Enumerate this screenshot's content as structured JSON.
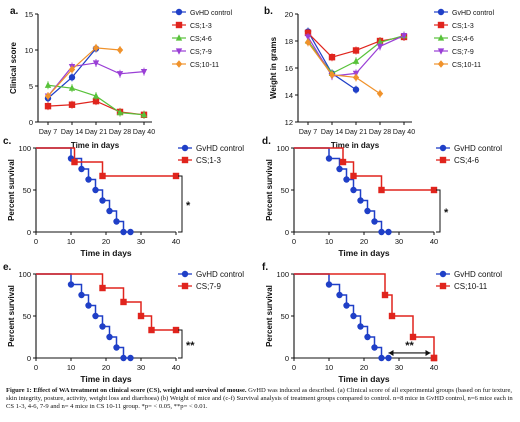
{
  "colors": {
    "gvhd": "#1f3fc7",
    "cs13": "#e0241d",
    "cs46": "#58c23a",
    "cs79": "#9a3fd6",
    "cs1011": "#f0922b",
    "axis": "#111111"
  },
  "chart_data": [
    {
      "panel": "a.",
      "type": "line",
      "xlabel": "Time in days",
      "ylabel": "Clinical score",
      "categories": [
        "Day 7",
        "Day 14",
        "Day 21",
        "Day 28",
        "Day 40"
      ],
      "yticks": [
        "0",
        "5",
        "10",
        "15"
      ],
      "ylim": [
        0,
        15
      ],
      "legend_position": "right",
      "series": [
        {
          "name": "GvHD control",
          "color_key": "gvhd",
          "marker": "circle",
          "values": [
            3.3,
            6.2,
            10.2,
            null,
            null
          ]
        },
        {
          "name": "CS;1-3",
          "color_key": "cs13",
          "marker": "square",
          "values": [
            2.2,
            2.4,
            2.9,
            1.4,
            1.0
          ]
        },
        {
          "name": "CS;4-6",
          "color_key": "cs46",
          "marker": "triangle",
          "values": [
            5.1,
            4.7,
            3.6,
            1.3,
            1.0
          ]
        },
        {
          "name": "CS;7-9",
          "color_key": "cs79",
          "marker": "triangle-down",
          "values": [
            3.6,
            7.7,
            8.2,
            6.7,
            7.0
          ]
        },
        {
          "name": "CS;10-11",
          "color_key": "cs1011",
          "marker": "diamond",
          "values": [
            3.6,
            7.3,
            10.3,
            10.0,
            null
          ]
        }
      ]
    },
    {
      "panel": "b.",
      "type": "line",
      "xlabel": "Time in days",
      "ylabel": "Weight in grams",
      "categories": [
        "Day 7",
        "Day 14",
        "Day 21",
        "Day 28",
        "Day 40"
      ],
      "yticks": [
        "12",
        "14",
        "16",
        "18",
        "20"
      ],
      "ylim": [
        12,
        20
      ],
      "legend_position": "right",
      "series": [
        {
          "name": "GvHD control",
          "color_key": "gvhd",
          "marker": "circle",
          "values": [
            18.7,
            15.6,
            14.4,
            null,
            null
          ]
        },
        {
          "name": "CS;1-3",
          "color_key": "cs13",
          "marker": "square",
          "values": [
            18.6,
            16.8,
            17.3,
            18.0,
            18.3
          ]
        },
        {
          "name": "CS;4-6",
          "color_key": "cs46",
          "marker": "triangle",
          "values": [
            18.0,
            15.6,
            16.5,
            17.9,
            18.4
          ]
        },
        {
          "name": "CS;7-9",
          "color_key": "cs79",
          "marker": "triangle-down",
          "values": [
            18.3,
            15.4,
            15.6,
            17.6,
            18.4
          ]
        },
        {
          "name": "CS;10-11",
          "color_key": "cs1011",
          "marker": "diamond",
          "values": [
            17.9,
            15.5,
            15.3,
            14.1,
            null
          ]
        }
      ]
    },
    {
      "panel": "c.",
      "type": "line",
      "step": true,
      "xlabel": "Time in days",
      "ylabel": "Percent survival",
      "xticks": [
        "0",
        "10",
        "20",
        "30",
        "40"
      ],
      "yticks": [
        "0",
        "50",
        "100"
      ],
      "xlim": [
        0,
        40
      ],
      "ylim": [
        0,
        100
      ],
      "significance": "*",
      "series": [
        {
          "name": "GvHD control",
          "color_key": "gvhd",
          "points": [
            [
              0,
              100
            ],
            [
              10,
              100
            ],
            [
              10,
              87.5
            ],
            [
              13,
              87.5
            ],
            [
              13,
              75
            ],
            [
              15,
              75
            ],
            [
              15,
              62.5
            ],
            [
              17,
              62.5
            ],
            [
              17,
              50
            ],
            [
              19,
              50
            ],
            [
              19,
              37.5
            ],
            [
              21,
              37.5
            ],
            [
              21,
              25
            ],
            [
              23,
              25
            ],
            [
              23,
              12.5
            ],
            [
              25,
              12.5
            ],
            [
              25,
              0
            ],
            [
              27,
              0
            ]
          ]
        },
        {
          "name": "CS;1-3",
          "color_key": "cs13",
          "points": [
            [
              0,
              100
            ],
            [
              11,
              100
            ],
            [
              11,
              83.3
            ],
            [
              19,
              83.3
            ],
            [
              19,
              66.7
            ],
            [
              40,
              66.7
            ]
          ]
        }
      ]
    },
    {
      "panel": "d.",
      "type": "line",
      "step": true,
      "xlabel": "Time in days",
      "ylabel": "Percent survival",
      "xticks": [
        "0",
        "10",
        "20",
        "30",
        "40"
      ],
      "yticks": [
        "0",
        "50",
        "100"
      ],
      "xlim": [
        0,
        40
      ],
      "ylim": [
        0,
        100
      ],
      "significance": "*",
      "series": [
        {
          "name": "GvHD control",
          "color_key": "gvhd",
          "points": [
            [
              0,
              100
            ],
            [
              10,
              100
            ],
            [
              10,
              87.5
            ],
            [
              13,
              87.5
            ],
            [
              13,
              75
            ],
            [
              15,
              75
            ],
            [
              15,
              62.5
            ],
            [
              17,
              62.5
            ],
            [
              17,
              50
            ],
            [
              19,
              50
            ],
            [
              19,
              37.5
            ],
            [
              21,
              37.5
            ],
            [
              21,
              25
            ],
            [
              23,
              25
            ],
            [
              23,
              12.5
            ],
            [
              25,
              12.5
            ],
            [
              25,
              0
            ],
            [
              27,
              0
            ]
          ]
        },
        {
          "name": "CS;4-6",
          "color_key": "cs46",
          "color_override": "cs13",
          "points": [
            [
              0,
              100
            ],
            [
              14,
              100
            ],
            [
              14,
              83.3
            ],
            [
              17,
              83.3
            ],
            [
              17,
              66.7
            ],
            [
              25,
              66.7
            ],
            [
              25,
              50
            ],
            [
              40,
              50
            ]
          ]
        }
      ]
    },
    {
      "panel": "e.",
      "type": "line",
      "step": true,
      "xlabel": "Time in days",
      "ylabel": "Percent survival",
      "xticks": [
        "0",
        "10",
        "20",
        "30",
        "40"
      ],
      "yticks": [
        "0",
        "50",
        "100"
      ],
      "xlim": [
        0,
        40
      ],
      "ylim": [
        0,
        100
      ],
      "significance": "**",
      "series": [
        {
          "name": "GvHD control",
          "color_key": "gvhd",
          "points": [
            [
              0,
              100
            ],
            [
              10,
              100
            ],
            [
              10,
              87.5
            ],
            [
              13,
              87.5
            ],
            [
              13,
              75
            ],
            [
              15,
              75
            ],
            [
              15,
              62.5
            ],
            [
              17,
              62.5
            ],
            [
              17,
              50
            ],
            [
              19,
              50
            ],
            [
              19,
              37.5
            ],
            [
              21,
              37.5
            ],
            [
              21,
              25
            ],
            [
              23,
              25
            ],
            [
              23,
              12.5
            ],
            [
              25,
              12.5
            ],
            [
              25,
              0
            ],
            [
              27,
              0
            ]
          ]
        },
        {
          "name": "CS;7-9",
          "color_key": "cs79",
          "color_override": "cs13",
          "points": [
            [
              0,
              100
            ],
            [
              19,
              100
            ],
            [
              19,
              83.3
            ],
            [
              25,
              83.3
            ],
            [
              25,
              66.7
            ],
            [
              30,
              66.7
            ],
            [
              30,
              50
            ],
            [
              33,
              50
            ],
            [
              33,
              33.3
            ],
            [
              40,
              33.3
            ]
          ]
        }
      ]
    },
    {
      "panel": "f.",
      "type": "line",
      "step": true,
      "xlabel": "Time in days",
      "ylabel": "Percent survival",
      "xticks": [
        "0",
        "10",
        "20",
        "30",
        "40"
      ],
      "yticks": [
        "0",
        "50",
        "100"
      ],
      "xlim": [
        0,
        40
      ],
      "ylim": [
        0,
        100
      ],
      "significance": "**",
      "series": [
        {
          "name": "GvHD control",
          "color_key": "gvhd",
          "points": [
            [
              0,
              100
            ],
            [
              10,
              100
            ],
            [
              10,
              87.5
            ],
            [
              13,
              87.5
            ],
            [
              13,
              75
            ],
            [
              15,
              75
            ],
            [
              15,
              62.5
            ],
            [
              17,
              62.5
            ],
            [
              17,
              50
            ],
            [
              19,
              50
            ],
            [
              19,
              37.5
            ],
            [
              21,
              37.5
            ],
            [
              21,
              25
            ],
            [
              23,
              25
            ],
            [
              23,
              12.5
            ],
            [
              25,
              12.5
            ],
            [
              25,
              0
            ],
            [
              27,
              0
            ]
          ]
        },
        {
          "name": "CS;10-11",
          "color_key": "cs1011",
          "color_override": "cs13",
          "points": [
            [
              0,
              100
            ],
            [
              26,
              100
            ],
            [
              26,
              75
            ],
            [
              28,
              75
            ],
            [
              28,
              50
            ],
            [
              34,
              50
            ],
            [
              34,
              25
            ],
            [
              40,
              25
            ],
            [
              40,
              0
            ]
          ]
        }
      ]
    }
  ],
  "caption": {
    "bold": "Figure 1: Effect of WA treatment on clinical score (CS), weight and survival of mouse.",
    "text": " GvHD was induced as described. (a) Clinical score of all experimental groups (based on fur texture, skin integrity, posture, activity, weight loss and diarrhoea) (b) Weight of mice and (c-f) Survival analysis of treatment groups compared to control. n=8 mice in GvHD control, n=6 mice each in CS 1-3, 4-6, 7-9 and n= 4 mice in CS 10-11 group. *p= < 0.05, **p= < 0.01."
  }
}
